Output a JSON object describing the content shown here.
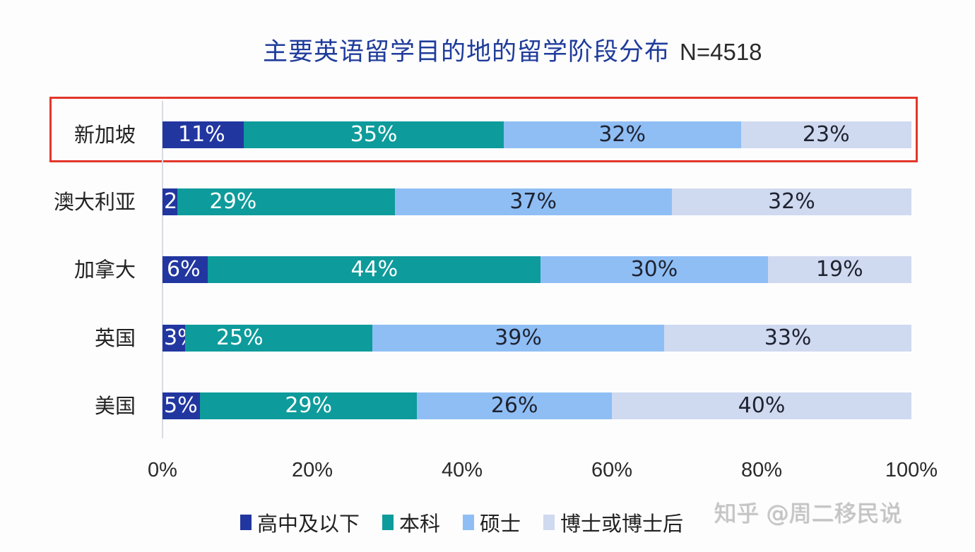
{
  "title": {
    "main": "主要英语留学目的地的留学阶段分布",
    "sample": "N=4518"
  },
  "colors": {
    "high_school": "#2236a0",
    "bachelor": "#0e9b9b",
    "master": "#8fbef5",
    "phd": "#cfd9f0",
    "highlight_border": "#e2372a",
    "title": "#1f3c9a"
  },
  "highlight": {
    "row": "新加坡"
  },
  "rows": [
    {
      "label": "新加坡",
      "labels": [
        "11%",
        "35%",
        "32%",
        "23%"
      ]
    },
    {
      "label": "澳大利亚",
      "labels": [
        "2%",
        "29%",
        "37%",
        "32%"
      ]
    },
    {
      "label": "加拿大",
      "labels": [
        "6%",
        "44%",
        "30%",
        "19%"
      ]
    },
    {
      "label": "英国",
      "labels": [
        "3%",
        "25%",
        "39%",
        "33%"
      ]
    },
    {
      "label": "美国",
      "labels": [
        "5%",
        "29%",
        "26%",
        "40%"
      ]
    }
  ],
  "axis": {
    "ticks": [
      "0%",
      "20%",
      "40%",
      "60%",
      "80%",
      "100%"
    ]
  },
  "legend": [
    {
      "label": "高中及以下",
      "color": "#2236a0"
    },
    {
      "label": "本科",
      "color": "#0e9b9b"
    },
    {
      "label": "硕士",
      "color": "#8fbef5"
    },
    {
      "label": "博士或博士后",
      "color": "#cfd9f0"
    }
  ],
  "watermark": "知乎 @周二移民说",
  "chart_data": {
    "type": "bar",
    "orientation": "horizontal",
    "stacked": true,
    "normalized": true,
    "title": "主要英语留学目的地的留学阶段分布 N=4518",
    "categories": [
      "新加坡",
      "澳大利亚",
      "加拿大",
      "英国",
      "美国"
    ],
    "series": [
      {
        "name": "高中及以下",
        "color": "#2236a0",
        "values": [
          11,
          2,
          6,
          3,
          5
        ]
      },
      {
        "name": "本科",
        "color": "#0e9b9b",
        "values": [
          35,
          29,
          44,
          25,
          29
        ]
      },
      {
        "name": "硕士",
        "color": "#8fbef5",
        "values": [
          32,
          37,
          30,
          39,
          26
        ]
      },
      {
        "name": "博士或博士后",
        "color": "#cfd9f0",
        "values": [
          23,
          32,
          19,
          33,
          40
        ]
      }
    ],
    "xlabel": "",
    "ylabel": "",
    "xlim": [
      0,
      100
    ],
    "x_ticks": [
      "0%",
      "20%",
      "40%",
      "60%",
      "80%",
      "100%"
    ],
    "grid": false,
    "legend_position": "bottom",
    "annotations": [
      "Red box highlights 新加坡 row"
    ]
  }
}
